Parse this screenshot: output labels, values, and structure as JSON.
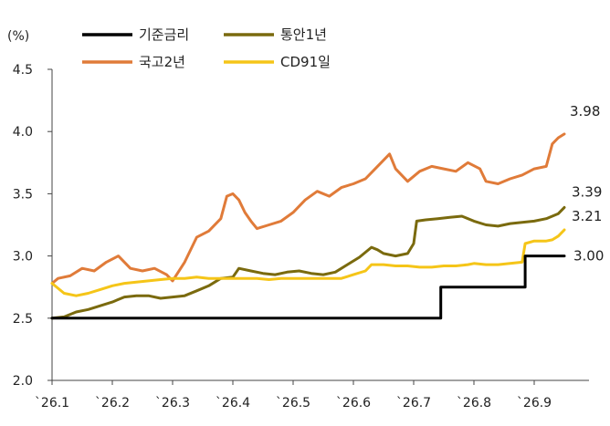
{
  "chart_data": {
    "type": "line",
    "unit_label": "(%)",
    "ylim": [
      2.0,
      4.5
    ],
    "y_ticks": [
      "4.5",
      "4.0",
      "3.5",
      "3.0",
      "2.5",
      "2.0"
    ],
    "x_ticks": [
      "`26.1",
      "`26.2",
      "`26.3",
      "`26.4",
      "`26.5",
      "`26.6",
      "`26.7",
      "`26.8",
      "`26.9"
    ],
    "xlim": [
      1.0,
      10.0
    ],
    "legend": {
      "position": "top",
      "columns": 2
    },
    "grid": false,
    "series": [
      {
        "name": "기준금리",
        "color": "#000000",
        "end_label": "3.00",
        "points": [
          [
            1.0,
            2.5
          ],
          [
            7.45,
            2.5
          ],
          [
            7.45,
            2.75
          ],
          [
            8.85,
            2.75
          ],
          [
            8.85,
            3.0
          ],
          [
            9.5,
            3.0
          ]
        ]
      },
      {
        "name": "통안1년",
        "color": "#7a6a0e",
        "end_label": "3.39",
        "points": [
          [
            1.0,
            2.5
          ],
          [
            1.2,
            2.51
          ],
          [
            1.4,
            2.55
          ],
          [
            1.6,
            2.57
          ],
          [
            1.8,
            2.6
          ],
          [
            2.0,
            2.63
          ],
          [
            2.2,
            2.67
          ],
          [
            2.4,
            2.68
          ],
          [
            2.6,
            2.68
          ],
          [
            2.8,
            2.66
          ],
          [
            3.0,
            2.67
          ],
          [
            3.2,
            2.68
          ],
          [
            3.4,
            2.72
          ],
          [
            3.6,
            2.76
          ],
          [
            3.8,
            2.82
          ],
          [
            4.0,
            2.83
          ],
          [
            4.1,
            2.9
          ],
          [
            4.3,
            2.88
          ],
          [
            4.5,
            2.86
          ],
          [
            4.7,
            2.85
          ],
          [
            4.9,
            2.87
          ],
          [
            5.1,
            2.88
          ],
          [
            5.3,
            2.86
          ],
          [
            5.5,
            2.85
          ],
          [
            5.7,
            2.87
          ],
          [
            5.9,
            2.93
          ],
          [
            6.1,
            2.99
          ],
          [
            6.3,
            3.07
          ],
          [
            6.4,
            3.05
          ],
          [
            6.5,
            3.02
          ],
          [
            6.7,
            3.0
          ],
          [
            6.9,
            3.02
          ],
          [
            7.0,
            3.1
          ],
          [
            7.05,
            3.28
          ],
          [
            7.2,
            3.29
          ],
          [
            7.4,
            3.3
          ],
          [
            7.6,
            3.31
          ],
          [
            7.8,
            3.32
          ],
          [
            8.0,
            3.28
          ],
          [
            8.2,
            3.25
          ],
          [
            8.4,
            3.24
          ],
          [
            8.6,
            3.26
          ],
          [
            8.8,
            3.27
          ],
          [
            9.0,
            3.28
          ],
          [
            9.2,
            3.3
          ],
          [
            9.4,
            3.34
          ],
          [
            9.5,
            3.39
          ]
        ]
      },
      {
        "name": "국고2년",
        "color": "#e07b39",
        "end_label": "3.98",
        "points": [
          [
            1.0,
            2.78
          ],
          [
            1.1,
            2.82
          ],
          [
            1.3,
            2.84
          ],
          [
            1.5,
            2.9
          ],
          [
            1.7,
            2.88
          ],
          [
            1.9,
            2.95
          ],
          [
            2.1,
            3.0
          ],
          [
            2.3,
            2.9
          ],
          [
            2.5,
            2.88
          ],
          [
            2.7,
            2.9
          ],
          [
            2.9,
            2.85
          ],
          [
            3.0,
            2.8
          ],
          [
            3.2,
            2.95
          ],
          [
            3.4,
            3.15
          ],
          [
            3.6,
            3.2
          ],
          [
            3.8,
            3.3
          ],
          [
            3.9,
            3.48
          ],
          [
            4.0,
            3.5
          ],
          [
            4.1,
            3.45
          ],
          [
            4.2,
            3.35
          ],
          [
            4.3,
            3.28
          ],
          [
            4.4,
            3.22
          ],
          [
            4.6,
            3.25
          ],
          [
            4.8,
            3.28
          ],
          [
            5.0,
            3.35
          ],
          [
            5.2,
            3.45
          ],
          [
            5.4,
            3.52
          ],
          [
            5.6,
            3.48
          ],
          [
            5.8,
            3.55
          ],
          [
            6.0,
            3.58
          ],
          [
            6.2,
            3.62
          ],
          [
            6.4,
            3.72
          ],
          [
            6.6,
            3.82
          ],
          [
            6.7,
            3.7
          ],
          [
            6.9,
            3.6
          ],
          [
            7.1,
            3.68
          ],
          [
            7.3,
            3.72
          ],
          [
            7.5,
            3.7
          ],
          [
            7.7,
            3.68
          ],
          [
            7.9,
            3.75
          ],
          [
            8.1,
            3.7
          ],
          [
            8.2,
            3.6
          ],
          [
            8.4,
            3.58
          ],
          [
            8.6,
            3.62
          ],
          [
            8.8,
            3.65
          ],
          [
            9.0,
            3.7
          ],
          [
            9.2,
            3.72
          ],
          [
            9.3,
            3.9
          ],
          [
            9.4,
            3.95
          ],
          [
            9.5,
            3.98
          ]
        ]
      },
      {
        "name": "CD91일",
        "color": "#f5c518",
        "end_label": "3.21",
        "points": [
          [
            1.0,
            2.78
          ],
          [
            1.2,
            2.7
          ],
          [
            1.4,
            2.68
          ],
          [
            1.6,
            2.7
          ],
          [
            1.8,
            2.73
          ],
          [
            2.0,
            2.76
          ],
          [
            2.2,
            2.78
          ],
          [
            2.4,
            2.79
          ],
          [
            2.6,
            2.8
          ],
          [
            2.8,
            2.81
          ],
          [
            3.0,
            2.82
          ],
          [
            3.2,
            2.82
          ],
          [
            3.4,
            2.83
          ],
          [
            3.6,
            2.82
          ],
          [
            3.8,
            2.82
          ],
          [
            4.0,
            2.82
          ],
          [
            4.2,
            2.82
          ],
          [
            4.4,
            2.82
          ],
          [
            4.6,
            2.81
          ],
          [
            4.8,
            2.82
          ],
          [
            5.0,
            2.82
          ],
          [
            5.2,
            2.82
          ],
          [
            5.4,
            2.82
          ],
          [
            5.6,
            2.82
          ],
          [
            5.8,
            2.82
          ],
          [
            6.0,
            2.85
          ],
          [
            6.2,
            2.88
          ],
          [
            6.3,
            2.93
          ],
          [
            6.5,
            2.93
          ],
          [
            6.7,
            2.92
          ],
          [
            6.9,
            2.92
          ],
          [
            7.1,
            2.91
          ],
          [
            7.3,
            2.91
          ],
          [
            7.5,
            2.92
          ],
          [
            7.7,
            2.92
          ],
          [
            7.9,
            2.93
          ],
          [
            8.0,
            2.94
          ],
          [
            8.2,
            2.93
          ],
          [
            8.4,
            2.93
          ],
          [
            8.6,
            2.94
          ],
          [
            8.8,
            2.95
          ],
          [
            8.85,
            3.1
          ],
          [
            9.0,
            3.12
          ],
          [
            9.2,
            3.12
          ],
          [
            9.3,
            3.13
          ],
          [
            9.4,
            3.16
          ],
          [
            9.5,
            3.21
          ]
        ]
      }
    ]
  }
}
